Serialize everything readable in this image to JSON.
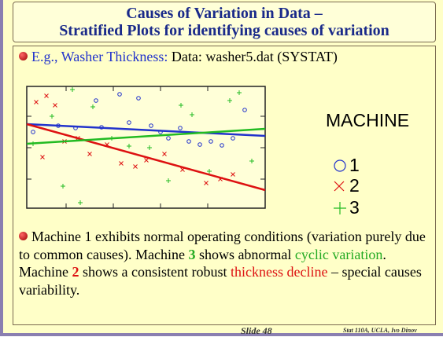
{
  "header": {
    "title_line1": "Causes of Variation in Data –",
    "title_line2": "Stratified Plots for identifying causes of variation"
  },
  "bullet1": {
    "lead": "E.g., Washer Thickness:",
    "rest": "Data: washer5.dat (SYSTAT)"
  },
  "legend": {
    "title": "MACHINE",
    "items": [
      "1",
      "2",
      "3"
    ]
  },
  "bullet2": {
    "segments": [
      "Machine 1 exhibits normal operating conditions (variation purely due to common causes). Machine ",
      "3",
      " shows abnormal ",
      "cyclic variation",
      ". Machine ",
      "2",
      " shows a consistent robust ",
      "thickness decline",
      " – special causes variability."
    ]
  },
  "footer": {
    "slide": "Slide 48",
    "credit": "Stat 110A, UCLA, Ivo Dinov"
  }
}
